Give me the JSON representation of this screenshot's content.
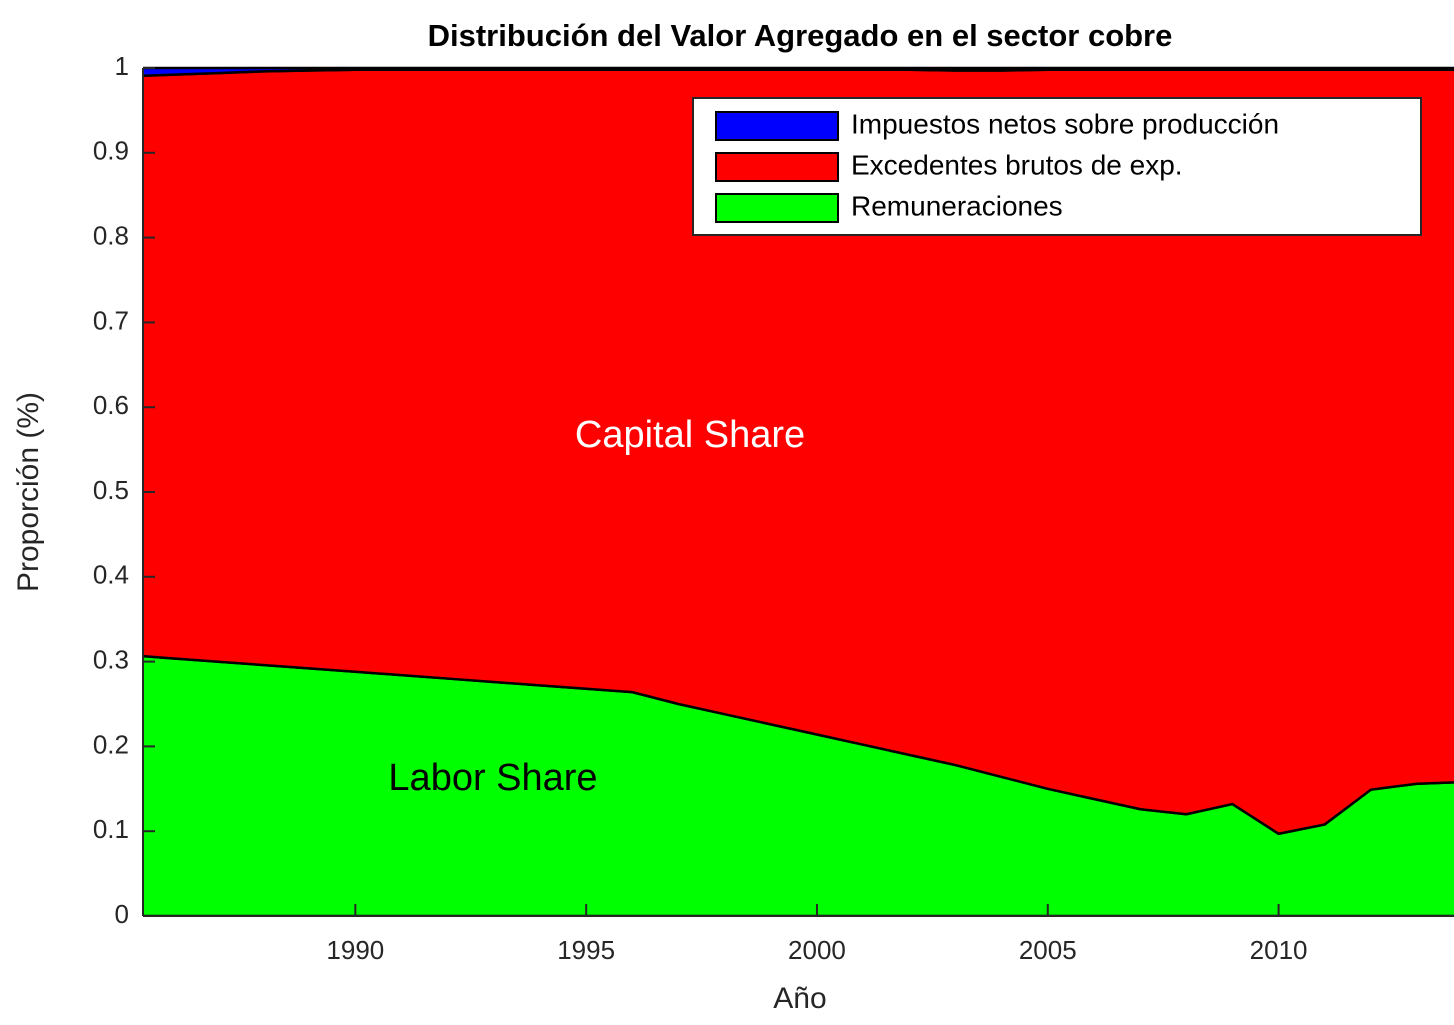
{
  "chart_data": {
    "type": "stacked_area",
    "title": "Distribución del Valor Agregado en el sector cobre",
    "xlabel": "Año",
    "ylabel": "Proporción (%)",
    "x": [
      1985,
      1986,
      1987,
      1988,
      1989,
      1990,
      1991,
      1992,
      1993,
      1994,
      1995,
      1996,
      1997,
      1998,
      1999,
      2000,
      2001,
      2002,
      2003,
      2004,
      2005,
      2006,
      2007,
      2008,
      2009,
      2010,
      2011,
      2012,
      2013,
      2014
    ],
    "series": [
      {
        "name": "Impuestos netos sobre producción",
        "color": "#0000ff",
        "values": [
          0.01,
          0.008,
          0.006,
          0.004,
          0.003,
          0.002,
          0.002,
          0.002,
          0.002,
          0.002,
          0.002,
          0.002,
          0.002,
          0.002,
          0.002,
          0.002,
          0.002,
          0.002,
          0.003,
          0.003,
          0.002,
          0.002,
          0.002,
          0.002,
          0.002,
          0.002,
          0.002,
          0.002,
          0.002,
          0.002
        ]
      },
      {
        "name": "Excedentes brutos de exp.",
        "color": "#ff0000",
        "values": [
          0.682,
          0.688,
          0.694,
          0.7,
          0.705,
          0.71,
          0.714,
          0.718,
          0.722,
          0.726,
          0.73,
          0.734,
          0.748,
          0.76,
          0.772,
          0.784,
          0.796,
          0.808,
          0.819,
          0.833,
          0.848,
          0.86,
          0.872,
          0.878,
          0.866,
          0.901,
          0.89,
          0.849,
          0.842,
          0.84
        ]
      },
      {
        "name": "Remuneraciones",
        "color": "#00ff00",
        "values": [
          0.308,
          0.304,
          0.3,
          0.296,
          0.292,
          0.288,
          0.284,
          0.28,
          0.276,
          0.272,
          0.268,
          0.264,
          0.25,
          0.238,
          0.226,
          0.214,
          0.202,
          0.19,
          0.178,
          0.164,
          0.15,
          0.138,
          0.126,
          0.12,
          0.132,
          0.097,
          0.108,
          0.149,
          0.156,
          0.158
        ]
      }
    ],
    "xlim": [
      1985.4,
      2013.8
    ],
    "xticks": [
      1990,
      1995,
      2000,
      2005,
      2010
    ],
    "ylim": [
      0,
      1
    ],
    "yticks": [
      0,
      0.1,
      0.2,
      0.3,
      0.4,
      0.5,
      0.6,
      0.7,
      0.8,
      0.9,
      1
    ],
    "legend": "upper right",
    "annotations": [
      {
        "text": "Capital Share",
        "color": "#ffffff"
      },
      {
        "text": "Labor Share",
        "color": "#000000"
      }
    ]
  }
}
